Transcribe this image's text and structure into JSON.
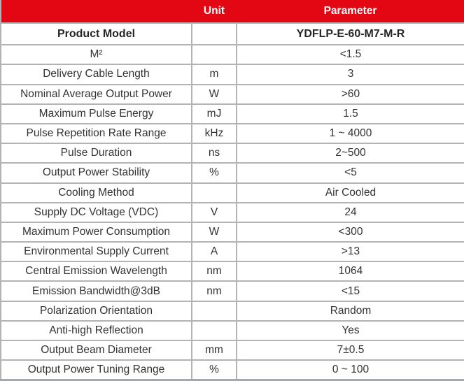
{
  "colors": {
    "header_bg": "#e30613",
    "header_text": "#ffffff",
    "body_text": "#333333",
    "grid_border": "#b3b3b3",
    "bottom_rule": "#a3a8ac"
  },
  "header": {
    "model_col": "",
    "unit_col": "Unit",
    "parameter_col": "Parameter"
  },
  "rows": [
    {
      "name": "Product Model",
      "unit": "",
      "value": "YDFLP-E-60-M7-M-R"
    },
    {
      "name": "M²",
      "unit": "",
      "value": "<1.5"
    },
    {
      "name": "Delivery Cable Length",
      "unit": "m",
      "value": "3"
    },
    {
      "name": "Nominal Average Output Power",
      "unit": "W",
      "value": ">60"
    },
    {
      "name": "Maximum Pulse Energy",
      "unit": "mJ",
      "value": "1.5"
    },
    {
      "name": "Pulse Repetition Rate Range",
      "unit": "kHz",
      "value": "1 ~ 4000"
    },
    {
      "name": "Pulse Duration",
      "unit": "ns",
      "value": "2~500"
    },
    {
      "name": "Output Power Stability",
      "unit": "%",
      "value": "<5"
    },
    {
      "name": "Cooling Method",
      "unit": "",
      "value": "Air Cooled"
    },
    {
      "name": "Supply DC Voltage (VDC)",
      "unit": "V",
      "value": "24"
    },
    {
      "name": "Maximum Power Consumption",
      "unit": "W",
      "value": "<300"
    },
    {
      "name": "Environmental Supply Current",
      "unit": "A",
      "value": ">13"
    },
    {
      "name": "Central Emission Wavelength",
      "unit": "nm",
      "value": "1064"
    },
    {
      "name": "Emission Bandwidth@3dB",
      "unit": "nm",
      "value": "<15"
    },
    {
      "name": "Polarization Orientation",
      "unit": "",
      "value": "Random"
    },
    {
      "name": "Anti-high Reflection",
      "unit": "",
      "value": "Yes"
    },
    {
      "name": "Output Beam Diameter",
      "unit": "mm",
      "value": "7±0.5"
    },
    {
      "name": "Output Power Tuning Range",
      "unit": "%",
      "value": "0 ~ 100"
    }
  ]
}
